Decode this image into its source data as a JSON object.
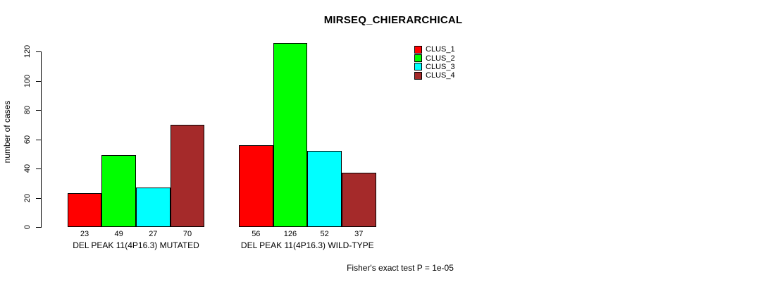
{
  "title": "MIRSEQ_CHIERARCHICAL",
  "footer": "Fisher's exact test P = 1e-05",
  "chart_data": {
    "type": "bar",
    "grouped": true,
    "title": "MIRSEQ_CHIERARCHICAL",
    "categories": [
      "DEL PEAK 11(4P16.3) MUTATED",
      "DEL PEAK 11(4P16.3) WILD-TYPE"
    ],
    "series": [
      {
        "name": "CLUS_1",
        "color": "#ff0000",
        "values": [
          23,
          56
        ]
      },
      {
        "name": "CLUS_2",
        "color": "#00ff00",
        "values": [
          49,
          126
        ]
      },
      {
        "name": "CLUS_3",
        "color": "#00ffff",
        "values": [
          27,
          52
        ]
      },
      {
        "name": "CLUS_4",
        "color": "#a52a2a",
        "values": [
          70,
          37
        ]
      }
    ],
    "xlabel": "",
    "ylabel": "number of cases",
    "yticks": [
      0,
      20,
      40,
      60,
      80,
      100,
      120
    ],
    "ylim": [
      0,
      130
    ],
    "bar_value_labels": [
      "23",
      "49",
      "27",
      "70",
      "56",
      "126",
      "52",
      "37"
    ],
    "legend_entries": [
      "CLUS_1",
      "CLUS_2",
      "CLUS_3",
      "CLUS_4"
    ],
    "legend_position": "top-right",
    "grid": false,
    "annotation": "Fisher's exact test P = 1e-05"
  }
}
